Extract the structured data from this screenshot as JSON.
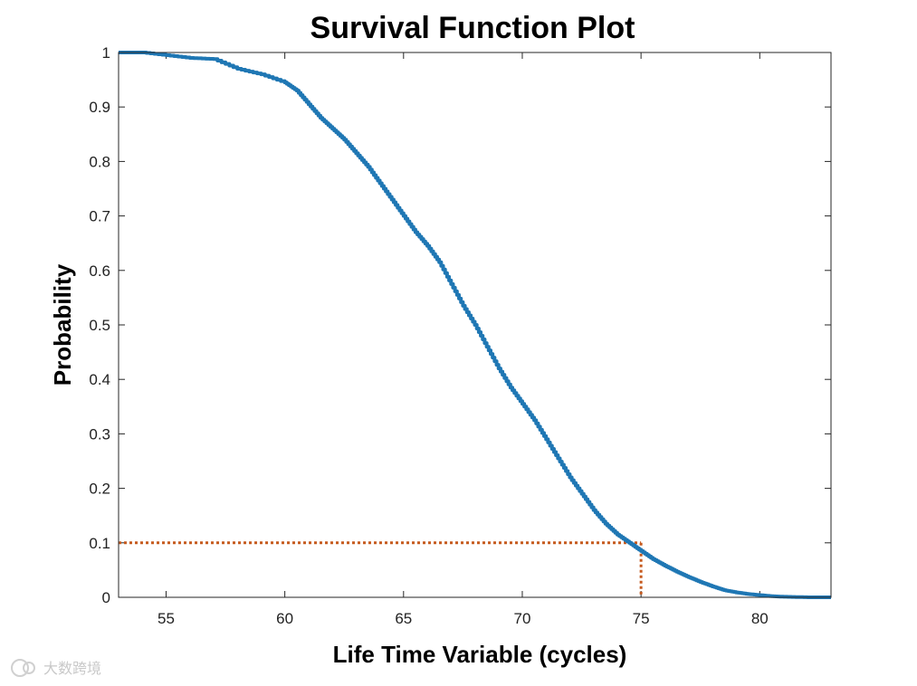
{
  "chart_data": {
    "type": "line",
    "title": "Survival Function Plot",
    "xlabel": "Life Time Variable (cycles)",
    "ylabel": "Probability",
    "xlim": [
      53,
      83
    ],
    "ylim": [
      0,
      1
    ],
    "xticks": [
      55,
      60,
      65,
      70,
      75,
      80
    ],
    "yticks": [
      0,
      0.1,
      0.2,
      0.3,
      0.4,
      0.5,
      0.6,
      0.7,
      0.8,
      0.9,
      1
    ],
    "ytick_labels": [
      "0",
      "0.1",
      "0.2",
      "0.3",
      "0.4",
      "0.5",
      "0.6",
      "0.7",
      "0.8",
      "0.9",
      "1"
    ],
    "grid": false,
    "series": [
      {
        "name": "Survival function",
        "color": "#1f77b4",
        "style": "solid",
        "x": [
          53,
          54,
          55,
          56,
          57,
          58,
          59,
          60,
          60.5,
          61,
          61.5,
          62,
          62.5,
          63,
          63.5,
          64,
          64.5,
          65,
          65.5,
          66,
          66.5,
          67,
          67.5,
          68,
          68.5,
          69,
          69.5,
          70,
          70.5,
          71,
          71.5,
          72,
          72.5,
          73,
          73.5,
          74,
          74.5,
          75,
          75.5,
          76,
          76.5,
          77,
          77.5,
          78,
          78.5,
          79,
          79.5,
          80,
          80.5,
          81,
          82,
          83
        ],
        "y": [
          1.0,
          1.0,
          0.995,
          0.99,
          0.988,
          0.97,
          0.96,
          0.945,
          0.93,
          0.905,
          0.88,
          0.86,
          0.84,
          0.815,
          0.79,
          0.76,
          0.73,
          0.7,
          0.67,
          0.645,
          0.615,
          0.575,
          0.535,
          0.5,
          0.46,
          0.42,
          0.385,
          0.355,
          0.325,
          0.29,
          0.255,
          0.22,
          0.19,
          0.16,
          0.135,
          0.115,
          0.1,
          0.085,
          0.07,
          0.058,
          0.047,
          0.037,
          0.028,
          0.02,
          0.013,
          0.009,
          0.006,
          0.004,
          0.002,
          0.001,
          0.0,
          0.0
        ]
      }
    ],
    "annotations": [
      {
        "name": "10th percentile marker",
        "color": "#c65a1e",
        "style": "dotted",
        "x": 75,
        "y": 0.1
      }
    ]
  },
  "watermark": {
    "text": "大数跨境"
  }
}
